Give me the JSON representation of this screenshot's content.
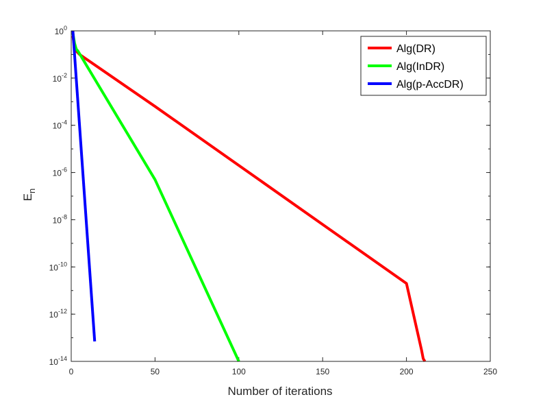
{
  "chart_data": {
    "type": "line",
    "title": "",
    "xlabel": "Number of iterations",
    "ylabel": "E",
    "ylabel_subscript": "n",
    "xscale": "linear",
    "yscale": "log",
    "xlim": [
      0,
      250
    ],
    "ylim": [
      1e-14,
      1
    ],
    "xticks": [
      0,
      50,
      100,
      150,
      200,
      250
    ],
    "xtick_labels": [
      "0",
      "50",
      "100",
      "150",
      "200",
      "250"
    ],
    "yticks": [
      1e-14,
      1e-12,
      1e-10,
      1e-08,
      1e-06,
      0.0001,
      0.01,
      1
    ],
    "ytick_labels": [
      {
        "base": "10",
        "exp": "-14"
      },
      {
        "base": "10",
        "exp": "-12"
      },
      {
        "base": "10",
        "exp": "-10"
      },
      {
        "base": "10",
        "exp": "-8"
      },
      {
        "base": "10",
        "exp": "-6"
      },
      {
        "base": "10",
        "exp": "-4"
      },
      {
        "base": "10",
        "exp": "-2"
      },
      {
        "base": "10",
        "exp": "0"
      }
    ],
    "grid": false,
    "box": true,
    "legend_position": "top-right",
    "series": [
      {
        "name": "Alg(DR)",
        "color": "#ff0000",
        "x": [
          1,
          2,
          3,
          5,
          50,
          100,
          150,
          200,
          209,
          210,
          211
        ],
        "y": [
          0.6,
          0.2,
          0.14,
          0.1,
          0.00063,
          2e-06,
          6.3e-09,
          2e-11,
          3e-14,
          1.3e-14,
          1e-14
        ]
      },
      {
        "name": "Alg(InDR)",
        "color": "#00ff00",
        "x": [
          1,
          2,
          3,
          4,
          50,
          100
        ],
        "y": [
          0.8,
          0.3,
          0.17,
          0.14,
          5e-07,
          1e-14
        ]
      },
      {
        "name": "Alg(p-AccDR)",
        "color": "#0000ff",
        "x": [
          1,
          14
        ],
        "y": [
          1.0,
          7e-14
        ]
      }
    ]
  }
}
